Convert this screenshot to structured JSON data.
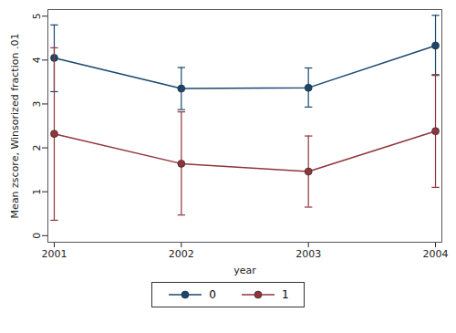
{
  "chart_data": {
    "type": "line",
    "x_label": "year",
    "y_label": "Mean zscore, Winsorized fraction .01",
    "x": [
      2001,
      2002,
      2003,
      2004
    ],
    "xlim": [
      2000.95,
      2004.05
    ],
    "xticks": [
      2001,
      2002,
      2003,
      2004
    ],
    "ylim": [
      -0.15,
      5.15
    ],
    "yticks": [
      0,
      1,
      2,
      3,
      4,
      5
    ],
    "grid": false,
    "legend": "bottom",
    "marker": "circle",
    "line_style": "solid",
    "series": [
      {
        "name": "0",
        "color": "#1a476f",
        "values": [
          4.05,
          3.35,
          3.37,
          4.33
        ],
        "lower": [
          3.28,
          2.87,
          2.93,
          3.65
        ],
        "upper": [
          4.8,
          3.83,
          3.82,
          5.02
        ]
      },
      {
        "name": "1",
        "color": "#90353b",
        "values": [
          2.32,
          1.64,
          1.46,
          2.38
        ],
        "lower": [
          0.35,
          0.47,
          0.65,
          1.1
        ],
        "upper": [
          4.28,
          2.82,
          2.27,
          3.67
        ]
      }
    ]
  }
}
